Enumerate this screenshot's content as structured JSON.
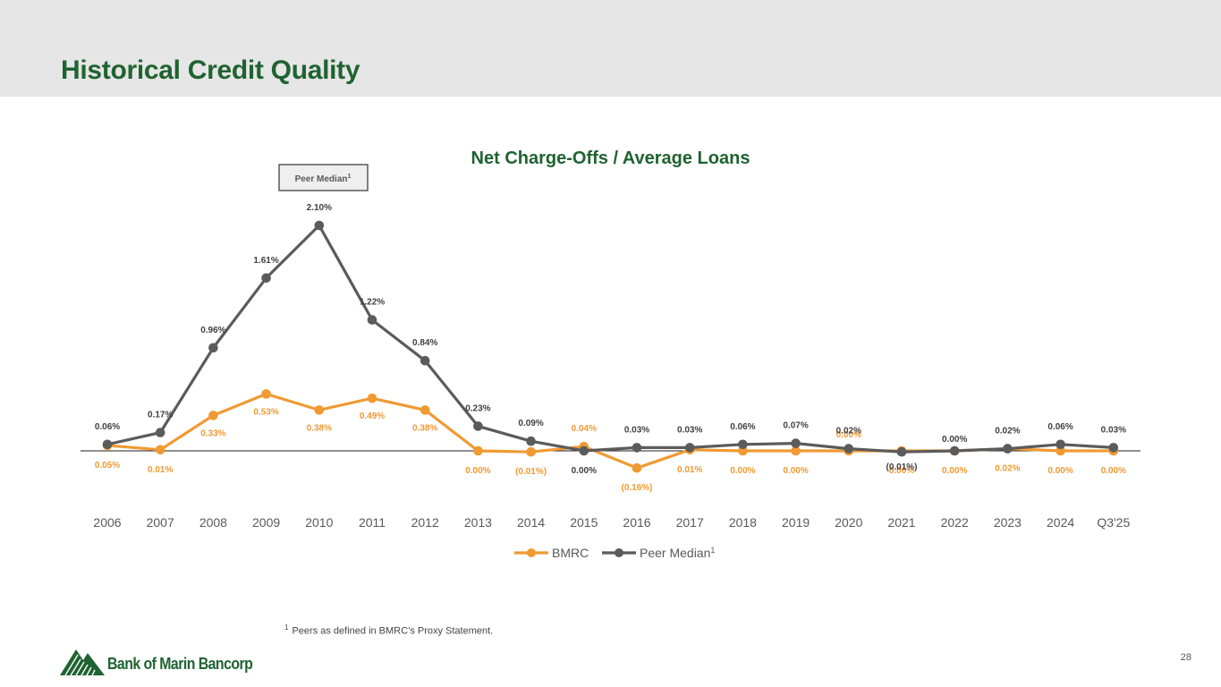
{
  "slide": {
    "title": "Historical Credit Quality",
    "page_number": "28",
    "footnote_marker": "1",
    "footnote_text": "Peers as defined in BMRC’s Proxy Statement."
  },
  "logo": {
    "text": "Bank of Marin Bancorp"
  },
  "colors": {
    "bmrc": "#f09a33",
    "peer": "#5b5b5b",
    "brand_green": "#1f6331"
  },
  "chart_data": {
    "type": "line",
    "title": "Net Charge-Offs / Average Loans",
    "xlabel": "",
    "ylabel": "",
    "ylim": [
      -0.2,
      2.2
    ],
    "grid": false,
    "legend_position": "bottom",
    "categories": [
      "2006",
      "2007",
      "2008",
      "2009",
      "2010",
      "2011",
      "2012",
      "2013",
      "2014",
      "2015",
      "2016",
      "2017",
      "2018",
      "2019",
      "2020",
      "2021",
      "2022",
      "2023",
      "2024",
      "Q3'25"
    ],
    "series": [
      {
        "name": "BMRC",
        "color": "#f09a33",
        "values": [
          0.05,
          0.01,
          0.33,
          0.53,
          0.38,
          0.49,
          0.38,
          0.0,
          -0.01,
          0.04,
          -0.16,
          0.01,
          0.0,
          0.0,
          0.0,
          0.0,
          0.0,
          0.02,
          0.0,
          0.0
        ],
        "labels": [
          "0.05%",
          "0.01%",
          "0.33%",
          "0.53%",
          "0.38%",
          "0.49%",
          "0.38%",
          "0.00%",
          "(0.01%)",
          "0.04%",
          "(0.16%)",
          "0.01%",
          "0.00%",
          "0.00%",
          "0.00%",
          "0.00%",
          "0.00%",
          "0.02%",
          "0.00%",
          "0.00%"
        ]
      },
      {
        "name": "Peer Median",
        "name_sup": "1",
        "color": "#5b5b5b",
        "values": [
          0.06,
          0.17,
          0.96,
          1.61,
          2.1,
          1.22,
          0.84,
          0.23,
          0.09,
          0.0,
          0.03,
          0.03,
          0.06,
          0.07,
          0.02,
          -0.01,
          0.0,
          0.02,
          0.06,
          0.03
        ],
        "labels": [
          "0.06%",
          "0.17%",
          "0.96%",
          "1.61%",
          "2.10%",
          "1.22%",
          "0.84%",
          "0.23%",
          "0.09%",
          "0.00%",
          "0.03%",
          "0.03%",
          "0.06%",
          "0.07%",
          "0.02%",
          "(0.01%)",
          "0.00%",
          "0.02%",
          "0.06%",
          "0.03%"
        ]
      }
    ],
    "annotations": [
      {
        "text": "Peer Median",
        "sup": "1",
        "target_series": "Peer Median"
      }
    ]
  }
}
